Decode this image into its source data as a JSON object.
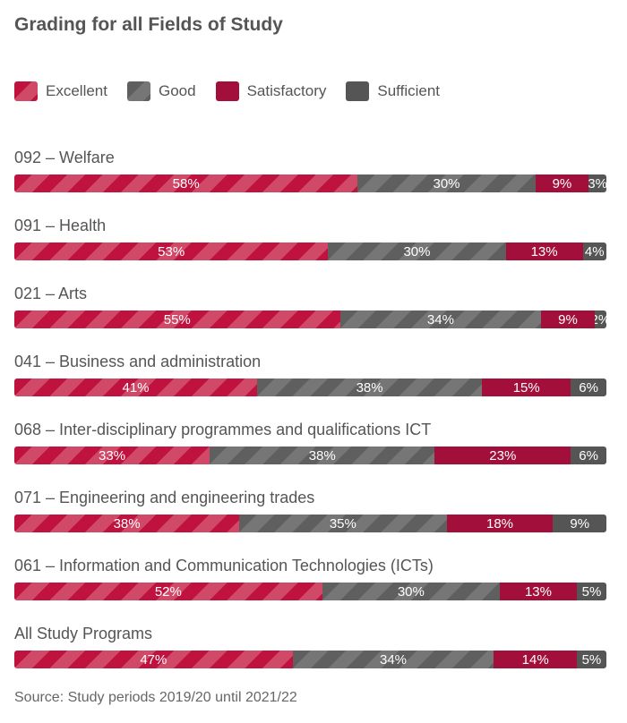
{
  "title": "Grading for all Fields of Study",
  "source": "Source: Study periods 2019/20 until 2021/22",
  "colors": {
    "Excellent": "#c0123f",
    "Good": "#5f5f5f",
    "Satisfactory": "#a10f3a",
    "Sufficient": "#555555"
  },
  "chart_data": {
    "type": "bar",
    "orientation": "horizontal",
    "stacked": true,
    "normalized": true,
    "title": "Grading for all Fields of Study",
    "legend": [
      "Excellent",
      "Good",
      "Satisfactory",
      "Sufficient"
    ],
    "legend_position": "top-left",
    "categories": [
      "092 – Welfare",
      "091 – Health",
      "021 – Arts",
      "041 – Business and administration",
      "068 – Inter-disciplinary programmes and qualifications ICT",
      "071 – Engineering and engineering trades",
      "061 – Information and Communication Technologies (ICTs)",
      "All Study Programs"
    ],
    "series": [
      {
        "name": "Excellent",
        "values": [
          58,
          53,
          55,
          41,
          33,
          38,
          52,
          47
        ]
      },
      {
        "name": "Good",
        "values": [
          30,
          30,
          34,
          38,
          38,
          35,
          30,
          34
        ]
      },
      {
        "name": "Satisfactory",
        "values": [
          9,
          13,
          9,
          15,
          23,
          18,
          13,
          14
        ]
      },
      {
        "name": "Sufficient",
        "values": [
          3,
          4,
          2,
          6,
          6,
          9,
          5,
          5
        ]
      }
    ],
    "value_suffix": "%"
  }
}
